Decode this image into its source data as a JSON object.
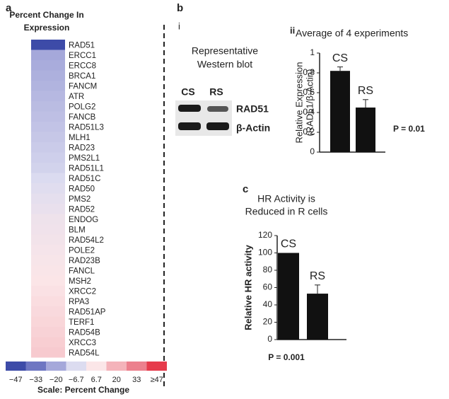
{
  "chart_data": [
    {
      "type": "heatmap",
      "panel": "a",
      "title": [
        "Percent Change In",
        "Expression"
      ],
      "categories": [
        "RAD51",
        "ERCC1",
        "ERCC8",
        "BRCA1",
        "FANCM",
        "ATR",
        "POLG2",
        "FANCB",
        "RAD51L3",
        "MLH1",
        "RAD23",
        "PMS2L1",
        "RAD51L1",
        "RAD51C",
        "RAD50",
        "PMS2",
        "RAD52",
        "ENDOG",
        "BLM",
        "RAD54L2",
        "POLE2",
        "RAD23B",
        "FANCL",
        "MSH2",
        "XRCC2",
        "RPA3",
        "RAD51AP",
        "TERF1",
        "RAD54B",
        "XRCC3",
        "RAD54L"
      ],
      "values": [
        -47,
        -20,
        -19,
        -18,
        -17,
        -16,
        -15,
        -14,
        -13,
        -12,
        -11,
        -10,
        -9,
        -7,
        -5,
        -3,
        -1,
        1,
        2,
        3,
        4,
        5,
        6,
        7,
        8,
        9,
        10,
        11,
        12,
        13,
        14
      ],
      "highlight_color": "#b0338f",
      "scale": {
        "title": "Scale: Percent Change",
        "ticks": [
          {
            "value": -47,
            "label": "−47"
          },
          {
            "value": -33,
            "label": "−33"
          },
          {
            "value": -20,
            "label": "−20"
          },
          {
            "value": -6.7,
            "label": "−6.7"
          },
          6.7,
          20,
          33,
          {
            "value": 47,
            "label": "≥47"
          }
        ],
        "colors": [
          "#3d4ba8",
          "#6e76c2",
          "#a5a8da",
          "#dcdcf0",
          "#fbe6e8",
          "#f4b3ba",
          "#ec808d",
          "#e63b4b"
        ]
      }
    },
    {
      "type": "bar",
      "panel": "ii",
      "title": "Average of 4 experiments",
      "categories": [
        "CS",
        "RS"
      ],
      "values": [
        0.82,
        0.45
      ],
      "errors": [
        0.04,
        0.08
      ],
      "color": "#111111",
      "ylim": [
        0,
        1
      ],
      "yticks": [
        0,
        0.2,
        0.4,
        0.6,
        0.8,
        1
      ],
      "ylabel": [
        "Relative Expression",
        "(RAD51/β-Actin)"
      ],
      "annotation": "P = 0.01"
    },
    {
      "type": "bar",
      "panel": "c",
      "title": [
        "HR Activity is",
        "Reduced in R cells"
      ],
      "categories": [
        "CS",
        "RS"
      ],
      "values": [
        100,
        53
      ],
      "errors": [
        0,
        10
      ],
      "color": "#111111",
      "ylim": [
        0,
        120
      ],
      "yticks": [
        0,
        20,
        40,
        60,
        80,
        100,
        120
      ],
      "ylabel": "Relative HR activity",
      "annotation": "P = 0.001"
    }
  ],
  "panel_b": {
    "label": "b",
    "western_blot": {
      "panel": "i",
      "title": [
        "Representative",
        "Western blot"
      ],
      "lanes": [
        "CS",
        "RS"
      ],
      "bands": [
        "RAD51",
        "β-Actin"
      ]
    }
  }
}
